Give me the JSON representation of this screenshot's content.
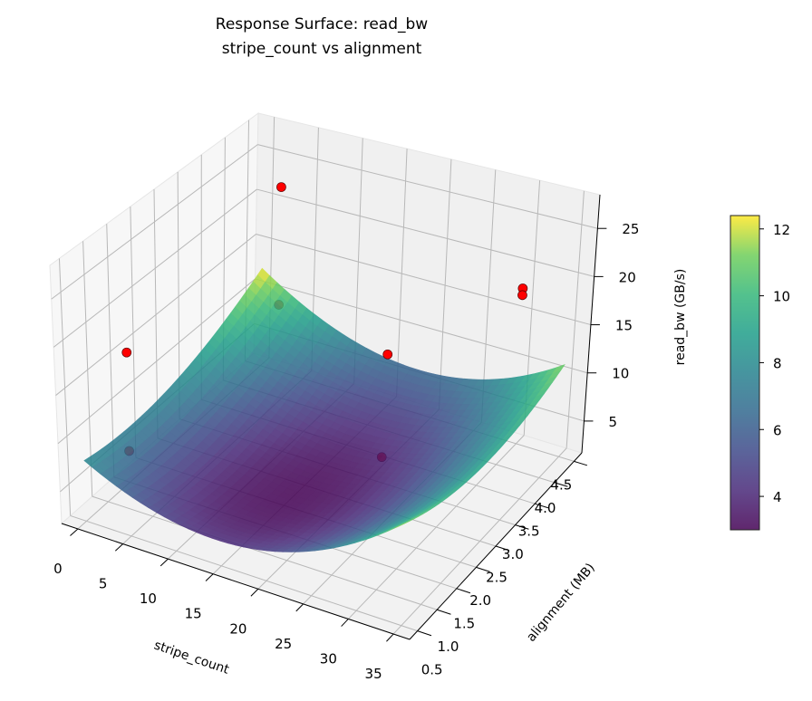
{
  "chart_data": {
    "type": "surface3d",
    "title": "Response Surface: read_bw",
    "subtitle": "stripe_count vs alignment",
    "xlabel": "stripe_count",
    "ylabel": "alignment (MB)",
    "zlabel": "read_bw (GB/s)",
    "xlim": [
      -1.8,
      36.8
    ],
    "ylim": [
      0.3,
      4.7
    ],
    "zlim": [
      1.7,
      28.5
    ],
    "x_ticks": [
      "0",
      "5",
      "10",
      "15",
      "20",
      "25",
      "30",
      "35"
    ],
    "y_ticks": [
      "0.5",
      "1.0",
      "1.5",
      "2.0",
      "2.5",
      "3.0",
      "3.5",
      "4.0",
      "4.5"
    ],
    "z_ticks": [
      "5",
      "10",
      "15",
      "20",
      "25"
    ],
    "grid": true,
    "colormap": "viridis",
    "surface_model": {
      "z_min": 3.0,
      "x_center": 16,
      "y_center": 2.0,
      "a_xx": 0.018,
      "b_yy": 0.553,
      "c_xy": -0.0357,
      "x_range": [
        0,
        35
      ],
      "y_range": [
        0.5,
        4.5
      ]
    },
    "points": [
      {
        "x": 2,
        "y": 4.5,
        "z": 22
      },
      {
        "x": 2,
        "y": 4.5,
        "z": 9
      },
      {
        "x": 0,
        "y": 1.5,
        "z": 15.4
      },
      {
        "x": 0,
        "y": 1.5,
        "z": 5
      },
      {
        "x": 24,
        "y": 2.5,
        "z": 17.8
      },
      {
        "x": 20,
        "y": 3.3,
        "z": 2.7
      },
      {
        "x": 31.5,
        "y": 4.1,
        "z": 20
      },
      {
        "x": 31.5,
        "y": 4.1,
        "z": 19.3
      }
    ],
    "point_color": "#ff0000",
    "colorbar": {
      "label": "read_bw (GB/s)",
      "range": [
        3.0,
        12.4
      ],
      "ticks": [
        "4",
        "6",
        "8",
        "10",
        "12"
      ]
    }
  }
}
